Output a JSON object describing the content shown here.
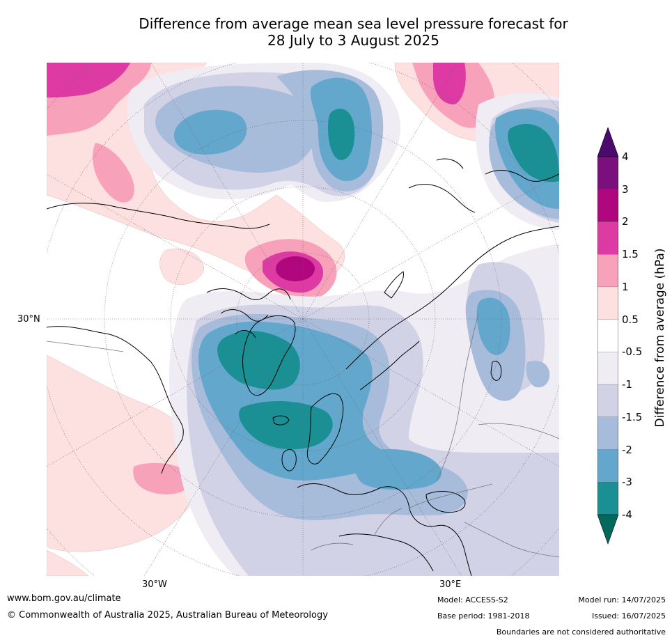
{
  "title_line1": "Difference from average mean sea level pressure forecast for",
  "title_line2": "28 July to 3 August 2025",
  "map_labels": {
    "lat_30n": "30°N",
    "lon_30w": "30°W",
    "lon_30e": "30°E"
  },
  "colorbar": {
    "title": "Difference from average (hPa)",
    "ticks": [
      "4",
      "3",
      "2",
      "1.5",
      "1",
      "0.5",
      "-0.5",
      "-1",
      "-1.5",
      "-2",
      "-3",
      "-4"
    ],
    "colors": {
      "above_4": "#4a0a6e",
      "3_to_4": "#7b0f7e",
      "2_to_3": "#b0077e",
      "1.5_to_2": "#de3aa3",
      "1_to_1.5": "#f8a1bb",
      "0.5_to_1": "#fde0e0",
      "neutral": "#ffffff",
      "-1_to_-0.5": "#f0ecf4",
      "-1.5_to_-1": "#d2d2e6",
      "-2_to_-1.5": "#a7bcda",
      "-3_to_-2": "#64a7cc",
      "-4_to_-3": "#1b9094",
      "below_-4": "#03695c"
    }
  },
  "footer": {
    "website": "www.bom.gov.au/climate",
    "copyright": "© Commonwealth of Australia 2025, Australian Bureau of Meteorology",
    "model": "Model: ACCESS-S2",
    "base_period": "Base period: 1981-2018",
    "model_run": "Model run: 14/07/2025",
    "issued": "Issued: 16/07/2025",
    "disclaimer": "Boundaries are not considered authoritative"
  }
}
